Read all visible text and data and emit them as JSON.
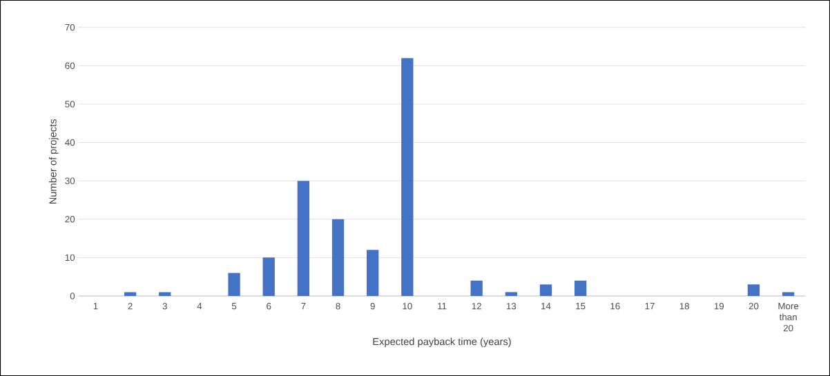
{
  "chart_data": {
    "type": "bar",
    "xlabel": "Expected payback time (years)",
    "ylabel": "Number of projects",
    "categories": [
      "1",
      "2",
      "3",
      "4",
      "5",
      "6",
      "7",
      "8",
      "9",
      "10",
      "11",
      "12",
      "13",
      "14",
      "15",
      "16",
      "17",
      "18",
      "19",
      "20",
      "More than 20"
    ],
    "values": [
      0,
      1,
      1,
      0,
      6,
      10,
      30,
      20,
      12,
      62,
      0,
      4,
      1,
      3,
      4,
      0,
      0,
      0,
      0,
      3,
      1
    ],
    "color": "#4472c4",
    "ylim": [
      0,
      70
    ],
    "yticks": [
      0,
      10,
      20,
      30,
      40,
      50,
      60,
      70
    ],
    "grid": "y"
  }
}
